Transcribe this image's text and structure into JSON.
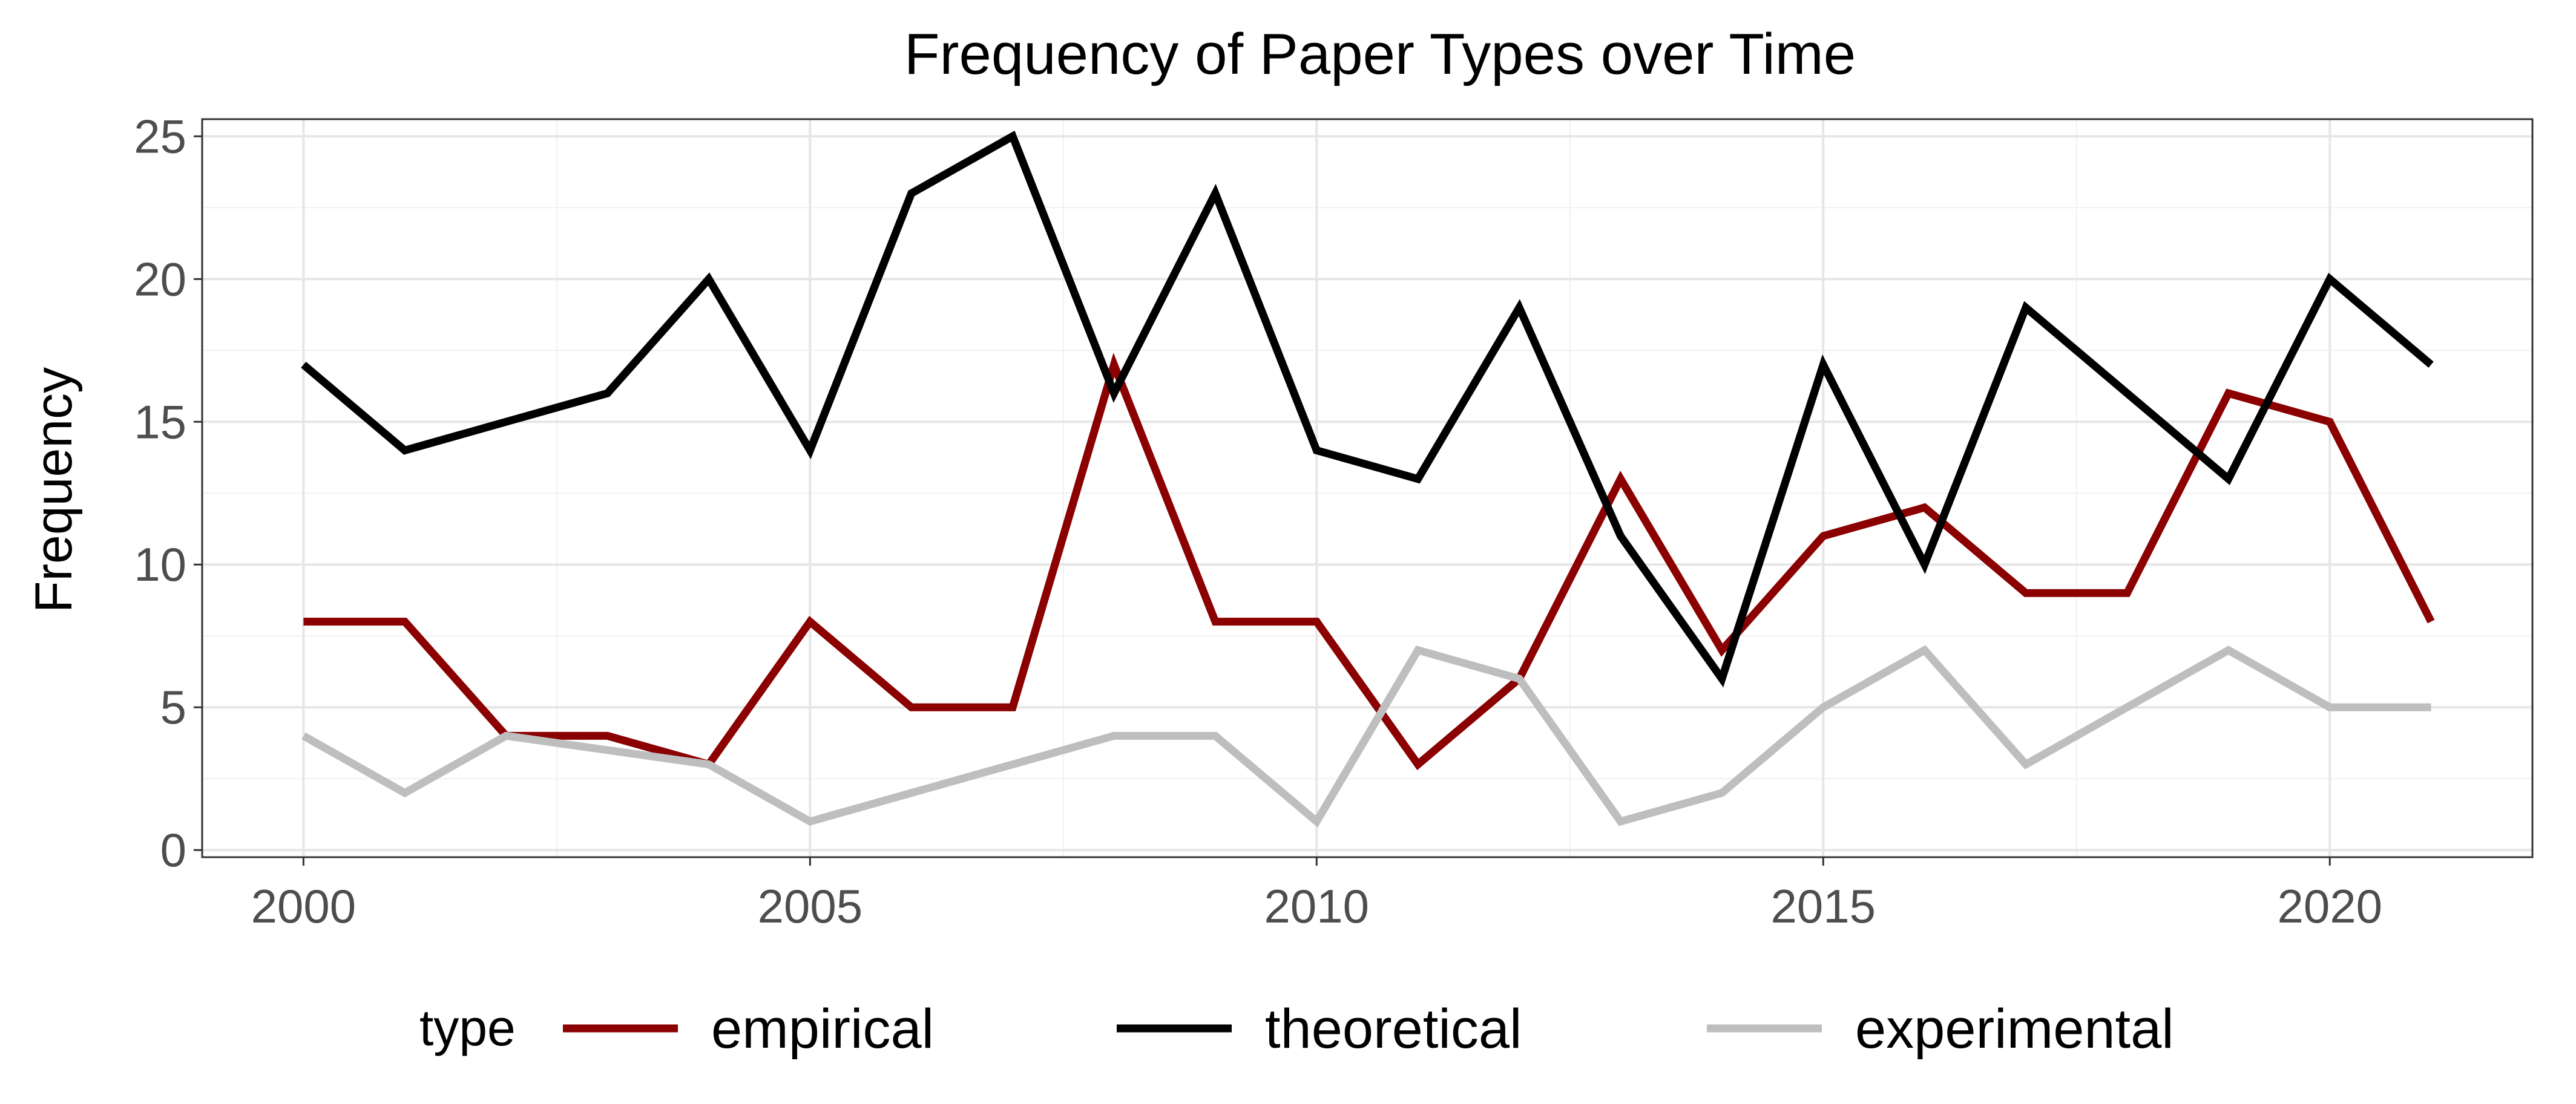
{
  "chart_data": {
    "type": "line",
    "title": "Frequency of Paper Types over Time",
    "xlabel": "",
    "ylabel": "Frequency",
    "xlim": [
      1999,
      2022
    ],
    "ylim": [
      -0.25,
      25.6
    ],
    "x_ticks": [
      2000,
      2005,
      2010,
      2015,
      2020
    ],
    "y_ticks": [
      0,
      5,
      10,
      15,
      20,
      25
    ],
    "grid": true,
    "legend_position": "bottom",
    "legend_title": "type",
    "x": [
      2000,
      2001,
      2002,
      2003,
      2004,
      2005,
      2006,
      2007,
      2008,
      2009,
      2010,
      2011,
      2012,
      2013,
      2014,
      2015,
      2016,
      2017,
      2018,
      2019,
      2020,
      2021
    ],
    "series": [
      {
        "name": "empirical",
        "color": "#8b0000",
        "values": [
          8,
          8,
          4,
          4,
          3,
          8,
          5,
          5,
          17,
          8,
          8,
          3,
          6,
          13,
          7,
          11,
          12,
          9,
          9,
          16,
          15,
          8
        ]
      },
      {
        "name": "theoretical",
        "color": "#000000",
        "values": [
          17,
          14,
          15,
          16,
          20,
          14,
          23,
          25,
          16,
          23,
          14,
          13,
          19,
          11,
          6,
          17,
          10,
          19,
          16,
          13,
          20,
          17
        ]
      },
      {
        "name": "experimental",
        "color": "#bebebe",
        "values": [
          4,
          2,
          4,
          3.5,
          3,
          1,
          2,
          3,
          4,
          4,
          1,
          7,
          6,
          1,
          2,
          5,
          7,
          3,
          5,
          7,
          5,
          5
        ]
      }
    ]
  }
}
